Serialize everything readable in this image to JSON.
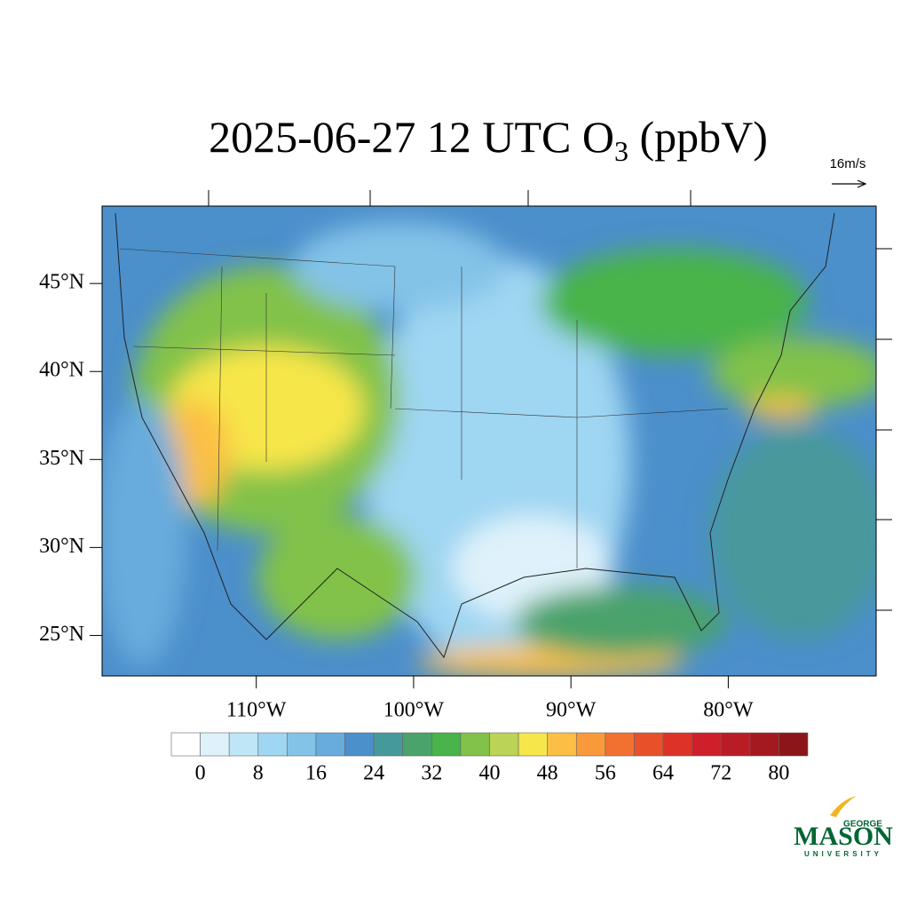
{
  "title": {
    "text": "2025-06-27 12 UTC O",
    "subscript": "3",
    "suffix": " (ppbV)"
  },
  "vector_reference": "16m/s",
  "map": {
    "xlim": [
      -119.8,
      -70.6
    ],
    "ylim": [
      22.7,
      49.4
    ],
    "xticks": [
      {
        "value": -110,
        "label": "110°W"
      },
      {
        "value": -100,
        "label": "100°W"
      },
      {
        "value": -90,
        "label": "90°W"
      },
      {
        "value": -80,
        "label": "80°W"
      }
    ],
    "yticks": [
      {
        "value": 45,
        "label": "45°N"
      },
      {
        "value": 40,
        "label": "40°N"
      },
      {
        "value": 35,
        "label": "35°N"
      },
      {
        "value": 30,
        "label": "30°N"
      },
      {
        "value": 25,
        "label": "25°N"
      }
    ]
  },
  "colorbar": {
    "colors": [
      "#ffffff",
      "#dff2fb",
      "#bfe6f7",
      "#9fd6f2",
      "#84c3e8",
      "#68acdd",
      "#4b8fcb",
      "#46999b",
      "#4aa36a",
      "#48b44a",
      "#82c24a",
      "#bcd455",
      "#f7e64a",
      "#fbbf45",
      "#f89a3a",
      "#f27030",
      "#e8502a",
      "#dc3227",
      "#cf1f2a",
      "#b81c25",
      "#a3191f",
      "#8b1518"
    ],
    "levels": [
      0,
      4,
      8,
      12,
      16,
      20,
      24,
      28,
      32,
      36,
      40,
      44,
      48,
      52,
      56,
      60,
      64,
      68,
      72,
      76,
      80
    ],
    "ticks": [
      0,
      8,
      16,
      24,
      32,
      40,
      48,
      56,
      64,
      72,
      80
    ]
  },
  "logo": {
    "top": "GEORGE",
    "main": "MASON",
    "bottom": "UNIVERSITY"
  }
}
